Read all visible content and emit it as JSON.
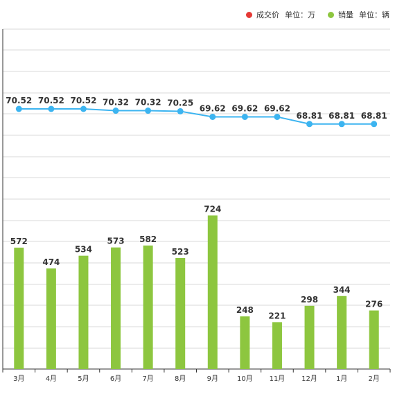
{
  "legend": {
    "price": {
      "label": "成交价",
      "unit_text": "单位：万",
      "color": "#e53935"
    },
    "sales": {
      "label": "销量",
      "unit_text": "单位：辆",
      "color": "#8dc63f"
    }
  },
  "chart_data": {
    "type": "bar+line",
    "categories": [
      "3月",
      "4月",
      "5月",
      "6月",
      "7月",
      "8月",
      "9月",
      "10月",
      "11月",
      "12月",
      "1月",
      "2月"
    ],
    "series": [
      {
        "name": "成交价",
        "type": "line",
        "color": "#3cb4f0",
        "values": [
          70.52,
          70.52,
          70.52,
          70.32,
          70.32,
          70.25,
          69.62,
          69.62,
          69.62,
          68.81,
          68.81,
          68.81
        ]
      },
      {
        "name": "销量",
        "type": "bar",
        "color": "#8dc63f",
        "values": [
          572,
          474,
          534,
          573,
          582,
          523,
          724,
          248,
          221,
          298,
          344,
          276
        ]
      }
    ],
    "grid": true,
    "legend_position": "top-right"
  }
}
